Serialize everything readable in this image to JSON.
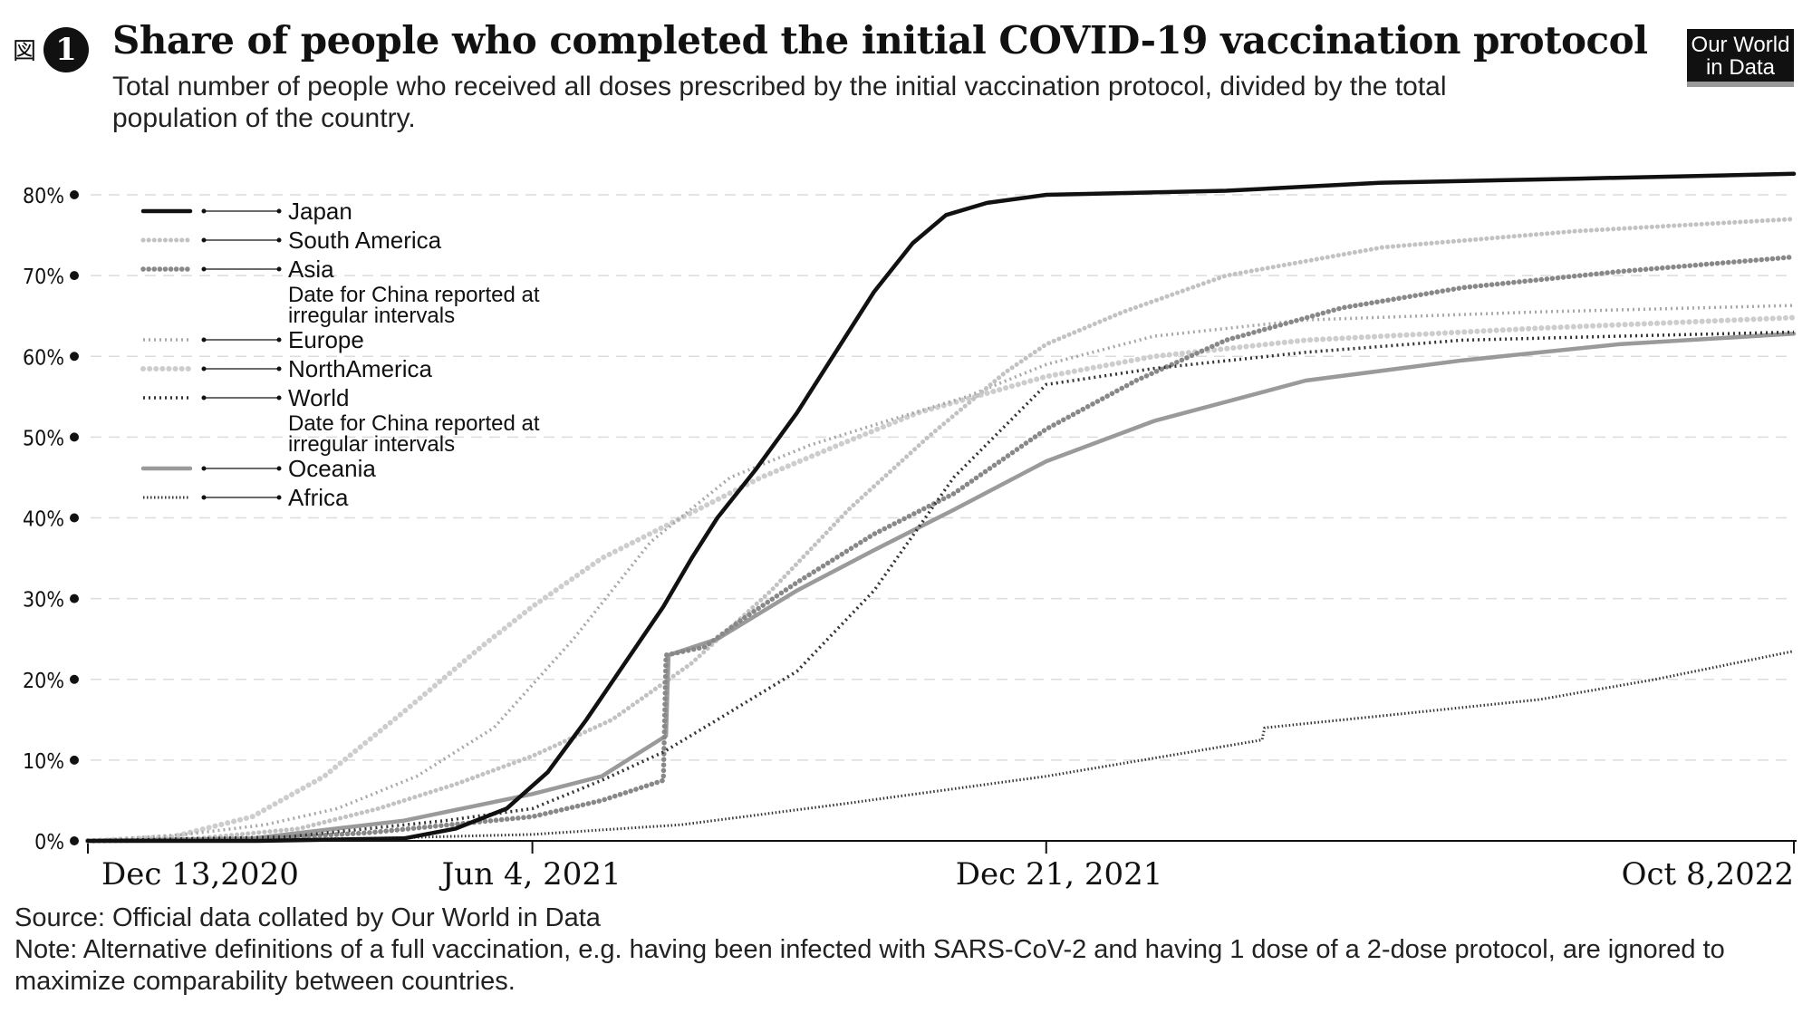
{
  "figure": {
    "label": "図",
    "number": "1"
  },
  "title": "Share of people who completed the initial COVID-19 vaccination protocol",
  "subtitle": "Total number of people who received all doses prescribed by the initial vaccination protocol, divided by the total population of the country.",
  "branding": {
    "line1": "Our World",
    "line2": "in Data"
  },
  "footer": {
    "source": "Source: Official data collated by Our World in Data",
    "note": "Note: Alternative definitions of a full vaccination, e.g. having been infected with SARS-CoV-2 and having 1 dose of a 2-dose protocol, are ignored to maximize comparability between countries."
  },
  "chart_data": {
    "type": "line",
    "y_ticks": [
      0,
      10,
      20,
      30,
      40,
      50,
      60,
      70,
      80
    ],
    "y_tick_labels": [
      "0%",
      "10%",
      "20%",
      "30%",
      "40%",
      "50%",
      "60%",
      "70%",
      "80%"
    ],
    "ylim": [
      0,
      80
    ],
    "x_range": [
      "2020-12-13",
      "2022-10-08"
    ],
    "x_ticks": [
      {
        "date": "2020-12-13",
        "label": "Dec 13,2020"
      },
      {
        "date": "2021-06-04",
        "label": "Jun 4, 2021"
      },
      {
        "date": "2021-12-21",
        "label": "Dec 21, 2021"
      },
      {
        "date": "2022-10-08",
        "label": "Oct 8,2022"
      }
    ],
    "grid": true,
    "legend_position": "top-left",
    "series": [
      {
        "name": "Japan",
        "note": "",
        "style": "solid-thick",
        "color": "#111111",
        "points": [
          [
            "2020-12-13",
            0
          ],
          [
            "2021-02-17",
            0
          ],
          [
            "2021-04-15",
            0.3
          ],
          [
            "2021-05-05",
            1.5
          ],
          [
            "2021-05-25",
            4
          ],
          [
            "2021-06-10",
            8.5
          ],
          [
            "2021-06-25",
            15
          ],
          [
            "2021-07-10",
            22
          ],
          [
            "2021-07-25",
            29
          ],
          [
            "2021-08-05",
            35
          ],
          [
            "2021-08-15",
            40
          ],
          [
            "2021-08-30",
            46
          ],
          [
            "2021-09-15",
            53
          ],
          [
            "2021-10-01",
            61
          ],
          [
            "2021-10-15",
            68
          ],
          [
            "2021-10-30",
            74
          ],
          [
            "2021-11-12",
            77.5
          ],
          [
            "2021-11-28",
            79
          ],
          [
            "2021-12-21",
            80
          ],
          [
            "2022-03-01",
            80.5
          ],
          [
            "2022-05-01",
            81.5
          ],
          [
            "2022-07-15",
            82
          ],
          [
            "2022-10-08",
            82.6
          ]
        ]
      },
      {
        "name": "South America",
        "note": "",
        "style": "dotted-light",
        "color": "#c2c2c2",
        "points": [
          [
            "2020-12-13",
            0
          ],
          [
            "2021-01-25",
            0.3
          ],
          [
            "2021-03-05",
            1.5
          ],
          [
            "2021-04-05",
            4
          ],
          [
            "2021-05-05",
            7
          ],
          [
            "2021-06-04",
            10.5
          ],
          [
            "2021-07-05",
            15
          ],
          [
            "2021-08-05",
            22
          ],
          [
            "2021-09-05",
            31
          ],
          [
            "2021-10-05",
            41
          ],
          [
            "2021-11-05",
            50
          ],
          [
            "2021-12-05",
            58
          ],
          [
            "2021-12-21",
            61.5
          ],
          [
            "2022-01-20",
            65.5
          ],
          [
            "2022-03-01",
            70
          ],
          [
            "2022-05-01",
            73.5
          ],
          [
            "2022-07-15",
            75.5
          ],
          [
            "2022-10-08",
            77
          ]
        ]
      },
      {
        "name": "Asia",
        "note": "Date for China reported at irregular intervals",
        "style": "dotted-medium",
        "color": "#888888",
        "points": [
          [
            "2020-12-13",
            0
          ],
          [
            "2021-02-15",
            0.2
          ],
          [
            "2021-04-01",
            1
          ],
          [
            "2021-06-04",
            3
          ],
          [
            "2021-07-01",
            5
          ],
          [
            "2021-07-25",
            7.5
          ],
          [
            "2021-07-26",
            23
          ],
          [
            "2021-08-10",
            24
          ],
          [
            "2021-08-25",
            27.5
          ],
          [
            "2021-09-15",
            32
          ],
          [
            "2021-10-15",
            38
          ],
          [
            "2021-11-15",
            43
          ],
          [
            "2021-12-21",
            51
          ],
          [
            "2022-01-25",
            57
          ],
          [
            "2022-03-01",
            62
          ],
          [
            "2022-04-15",
            66
          ],
          [
            "2022-06-01",
            68.5
          ],
          [
            "2022-08-01",
            70.5
          ],
          [
            "2022-10-08",
            72.3
          ]
        ]
      },
      {
        "name": "Europe",
        "note": "",
        "style": "cross-light",
        "color": "#a8a8a8",
        "points": [
          [
            "2020-12-13",
            0
          ],
          [
            "2021-01-20",
            0.8
          ],
          [
            "2021-02-20",
            2
          ],
          [
            "2021-03-20",
            4
          ],
          [
            "2021-04-20",
            8
          ],
          [
            "2021-05-20",
            14
          ],
          [
            "2021-06-20",
            25
          ],
          [
            "2021-07-20",
            37
          ],
          [
            "2021-08-20",
            45
          ],
          [
            "2021-09-20",
            49
          ],
          [
            "2021-10-20",
            52
          ],
          [
            "2021-11-20",
            55
          ],
          [
            "2021-12-21",
            59
          ],
          [
            "2022-02-01",
            62.5
          ],
          [
            "2022-04-01",
            64.5
          ],
          [
            "2022-07-01",
            65.5
          ],
          [
            "2022-10-08",
            66.3
          ]
        ]
      },
      {
        "name": "NorthAmerica",
        "note": "",
        "style": "dotted-faint",
        "color": "#cdcdcd",
        "points": [
          [
            "2020-12-13",
            0
          ],
          [
            "2021-01-15",
            0.5
          ],
          [
            "2021-02-15",
            3
          ],
          [
            "2021-03-15",
            8
          ],
          [
            "2021-04-15",
            16
          ],
          [
            "2021-05-15",
            24
          ],
          [
            "2021-06-04",
            29
          ],
          [
            "2021-07-01",
            35
          ],
          [
            "2021-08-01",
            40
          ],
          [
            "2021-09-01",
            45
          ],
          [
            "2021-10-01",
            49
          ],
          [
            "2021-11-01",
            53
          ],
          [
            "2021-12-21",
            57.5
          ],
          [
            "2022-02-01",
            60
          ],
          [
            "2022-04-01",
            62
          ],
          [
            "2022-07-01",
            63.5
          ],
          [
            "2022-10-08",
            64.8
          ]
        ]
      },
      {
        "name": "World",
        "note": "Date for China reported at irregular intervals",
        "style": "cross-dark",
        "color": "#333333",
        "points": [
          [
            "2020-12-13",
            0
          ],
          [
            "2021-03-01",
            0.5
          ],
          [
            "2021-05-01",
            2.5
          ],
          [
            "2021-06-04",
            4
          ],
          [
            "2021-07-01",
            7.5
          ],
          [
            "2021-07-25",
            11
          ],
          [
            "2021-08-15",
            15
          ],
          [
            "2021-09-15",
            21
          ],
          [
            "2021-10-15",
            31
          ],
          [
            "2021-11-15",
            45
          ],
          [
            "2021-12-21",
            56.5
          ],
          [
            "2022-02-01",
            58.5
          ],
          [
            "2022-04-01",
            60.5
          ],
          [
            "2022-06-01",
            62
          ],
          [
            "2022-08-01",
            62.5
          ],
          [
            "2022-10-08",
            63
          ]
        ]
      },
      {
        "name": "Oceania",
        "note": "",
        "style": "solid-gray",
        "color": "#9a9a9a",
        "points": [
          [
            "2020-12-13",
            0
          ],
          [
            "2021-02-15",
            0.3
          ],
          [
            "2021-04-15",
            2.5
          ],
          [
            "2021-06-04",
            5.8
          ],
          [
            "2021-07-01",
            8
          ],
          [
            "2021-07-26",
            13
          ],
          [
            "2021-07-27",
            23
          ],
          [
            "2021-08-15",
            25
          ],
          [
            "2021-09-15",
            31
          ],
          [
            "2021-10-15",
            36
          ],
          [
            "2021-11-15",
            41
          ],
          [
            "2021-12-21",
            47
          ],
          [
            "2022-02-01",
            52
          ],
          [
            "2022-04-01",
            57
          ],
          [
            "2022-06-01",
            59.5
          ],
          [
            "2022-08-01",
            61.5
          ],
          [
            "2022-10-08",
            62.8
          ]
        ]
      },
      {
        "name": "Africa",
        "note": "",
        "style": "hatched-dark",
        "color": "#333333",
        "points": [
          [
            "2020-12-13",
            0
          ],
          [
            "2021-04-01",
            0.3
          ],
          [
            "2021-06-04",
            0.8
          ],
          [
            "2021-08-01",
            2
          ],
          [
            "2021-10-01",
            4.5
          ],
          [
            "2021-12-21",
            8
          ],
          [
            "2022-02-15",
            11
          ],
          [
            "2022-03-15",
            12.5
          ],
          [
            "2022-03-16",
            14
          ],
          [
            "2022-05-01",
            15.5
          ],
          [
            "2022-07-01",
            17.5
          ],
          [
            "2022-08-15",
            20
          ],
          [
            "2022-10-08",
            23.5
          ]
        ]
      }
    ]
  }
}
